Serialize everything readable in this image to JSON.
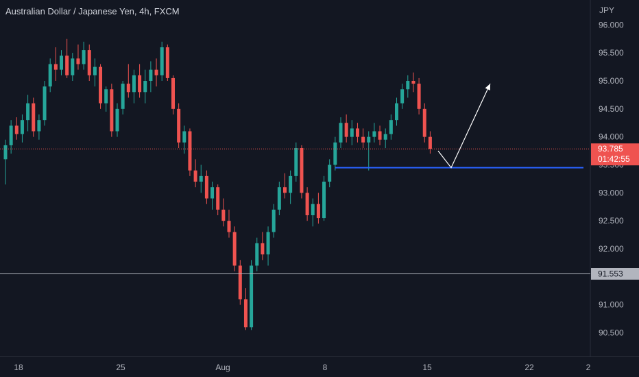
{
  "header": {
    "title": "Australian Dollar / Japanese Yen, 4h, FXCM"
  },
  "axis": {
    "currency": "JPY"
  },
  "price_label": {
    "value": "93.785",
    "countdown": "01:42:55"
  },
  "crosshair_label": {
    "value": "91.553"
  },
  "colors": {
    "up": "#26a69a",
    "down": "#ef5350",
    "background": "#131722",
    "support": "#2962ff",
    "projection": "#ffffff",
    "crosshair": "#b2b5be"
  },
  "chart_data": {
    "type": "candlestick",
    "title": "Australian Dollar / Japanese Yen, 4h, FXCM",
    "ylabel": "JPY",
    "ylim": [
      90.2,
      96.2
    ],
    "y_ticks": [
      "90.500",
      "91.000",
      "91.500",
      "92.000",
      "92.500",
      "93.000",
      "93.500",
      "94.000",
      "94.500",
      "95.000",
      "95.500",
      "96.000"
    ],
    "x_ticks": [
      "18",
      "25",
      "Aug",
      "8",
      "15",
      "22",
      "2"
    ],
    "grid": false,
    "last_price": 93.785,
    "crosshair_price": 91.553,
    "support_level": 93.45,
    "projection": [
      [
        93.75,
        93.45
      ],
      [
        93.45,
        94.95
      ]
    ],
    "ohlc": [
      [
        93.6,
        93.95,
        93.15,
        93.85
      ],
      [
        93.85,
        94.3,
        93.7,
        94.2
      ],
      [
        94.2,
        94.35,
        93.95,
        94.05
      ],
      [
        94.05,
        94.4,
        93.9,
        94.3
      ],
      [
        94.3,
        94.75,
        94.1,
        94.6
      ],
      [
        94.6,
        94.7,
        94.0,
        94.1
      ],
      [
        94.1,
        94.4,
        93.95,
        94.3
      ],
      [
        94.3,
        95.0,
        94.2,
        94.9
      ],
      [
        94.9,
        95.4,
        94.8,
        95.3
      ],
      [
        95.3,
        95.6,
        95.0,
        95.2
      ],
      [
        95.2,
        95.55,
        95.1,
        95.45
      ],
      [
        95.45,
        95.75,
        95.05,
        95.1
      ],
      [
        95.1,
        95.5,
        95.0,
        95.4
      ],
      [
        95.4,
        95.65,
        95.2,
        95.3
      ],
      [
        95.3,
        95.7,
        95.2,
        95.55
      ],
      [
        95.55,
        95.65,
        95.0,
        95.1
      ],
      [
        95.1,
        95.4,
        94.9,
        95.25
      ],
      [
        95.25,
        95.3,
        94.5,
        94.6
      ],
      [
        94.6,
        94.9,
        94.45,
        94.85
      ],
      [
        94.85,
        94.95,
        94.0,
        94.1
      ],
      [
        94.1,
        94.6,
        94.0,
        94.5
      ],
      [
        94.5,
        95.0,
        94.4,
        94.95
      ],
      [
        94.95,
        95.3,
        94.7,
        94.8
      ],
      [
        94.8,
        95.2,
        94.6,
        95.1
      ],
      [
        95.1,
        95.3,
        94.7,
        94.8
      ],
      [
        94.8,
        95.2,
        94.6,
        95.0
      ],
      [
        95.0,
        95.35,
        94.8,
        95.2
      ],
      [
        95.2,
        95.4,
        94.9,
        95.1
      ],
      [
        95.1,
        95.7,
        95.0,
        95.6
      ],
      [
        95.6,
        95.65,
        95.0,
        95.05
      ],
      [
        95.05,
        95.1,
        94.4,
        94.5
      ],
      [
        94.5,
        94.6,
        93.8,
        93.9
      ],
      [
        93.9,
        94.2,
        93.7,
        94.1
      ],
      [
        94.1,
        94.15,
        93.3,
        93.4
      ],
      [
        93.4,
        93.6,
        93.1,
        93.2
      ],
      [
        93.2,
        93.5,
        93.0,
        93.3
      ],
      [
        93.3,
        93.4,
        92.8,
        92.9
      ],
      [
        92.9,
        93.2,
        92.7,
        93.1
      ],
      [
        93.1,
        93.15,
        92.6,
        92.7
      ],
      [
        92.7,
        92.9,
        92.4,
        92.5
      ],
      [
        92.5,
        92.7,
        92.2,
        92.3
      ],
      [
        92.3,
        92.4,
        91.6,
        91.7
      ],
      [
        91.7,
        91.8,
        91.0,
        91.1
      ],
      [
        91.1,
        91.3,
        90.55,
        90.6
      ],
      [
        90.6,
        91.8,
        90.55,
        91.7
      ],
      [
        91.7,
        92.2,
        91.6,
        92.1
      ],
      [
        92.1,
        92.3,
        91.8,
        91.9
      ],
      [
        91.9,
        92.4,
        91.7,
        92.3
      ],
      [
        92.3,
        92.8,
        92.2,
        92.7
      ],
      [
        92.7,
        93.2,
        92.6,
        93.1
      ],
      [
        93.1,
        93.35,
        92.9,
        93.0
      ],
      [
        93.0,
        93.4,
        92.8,
        93.3
      ],
      [
        93.3,
        93.9,
        93.2,
        93.8
      ],
      [
        93.8,
        93.85,
        92.9,
        93.0
      ],
      [
        93.0,
        93.1,
        92.5,
        92.6
      ],
      [
        92.6,
        92.9,
        92.4,
        92.8
      ],
      [
        92.8,
        93.0,
        92.45,
        92.55
      ],
      [
        92.55,
        93.3,
        92.5,
        93.2
      ],
      [
        93.2,
        93.6,
        93.1,
        93.5
      ],
      [
        93.5,
        94.0,
        93.4,
        93.9
      ],
      [
        93.9,
        94.35,
        93.8,
        94.25
      ],
      [
        94.25,
        94.4,
        93.9,
        94.0
      ],
      [
        94.0,
        94.3,
        93.85,
        94.15
      ],
      [
        94.15,
        94.25,
        93.9,
        94.0
      ],
      [
        94.0,
        94.15,
        93.8,
        93.9
      ],
      [
        93.9,
        94.1,
        93.4,
        94.0
      ],
      [
        94.0,
        94.25,
        93.9,
        94.1
      ],
      [
        94.1,
        94.2,
        93.85,
        93.95
      ],
      [
        93.95,
        94.15,
        93.8,
        94.05
      ],
      [
        94.05,
        94.4,
        93.95,
        94.3
      ],
      [
        94.3,
        94.7,
        94.2,
        94.6
      ],
      [
        94.6,
        94.95,
        94.5,
        94.85
      ],
      [
        94.85,
        95.1,
        94.7,
        95.0
      ],
      [
        95.0,
        95.15,
        94.8,
        94.95
      ],
      [
        94.95,
        95.05,
        94.4,
        94.5
      ],
      [
        94.5,
        94.6,
        93.9,
        94.0
      ],
      [
        94.0,
        94.1,
        93.7,
        93.785
      ]
    ]
  }
}
